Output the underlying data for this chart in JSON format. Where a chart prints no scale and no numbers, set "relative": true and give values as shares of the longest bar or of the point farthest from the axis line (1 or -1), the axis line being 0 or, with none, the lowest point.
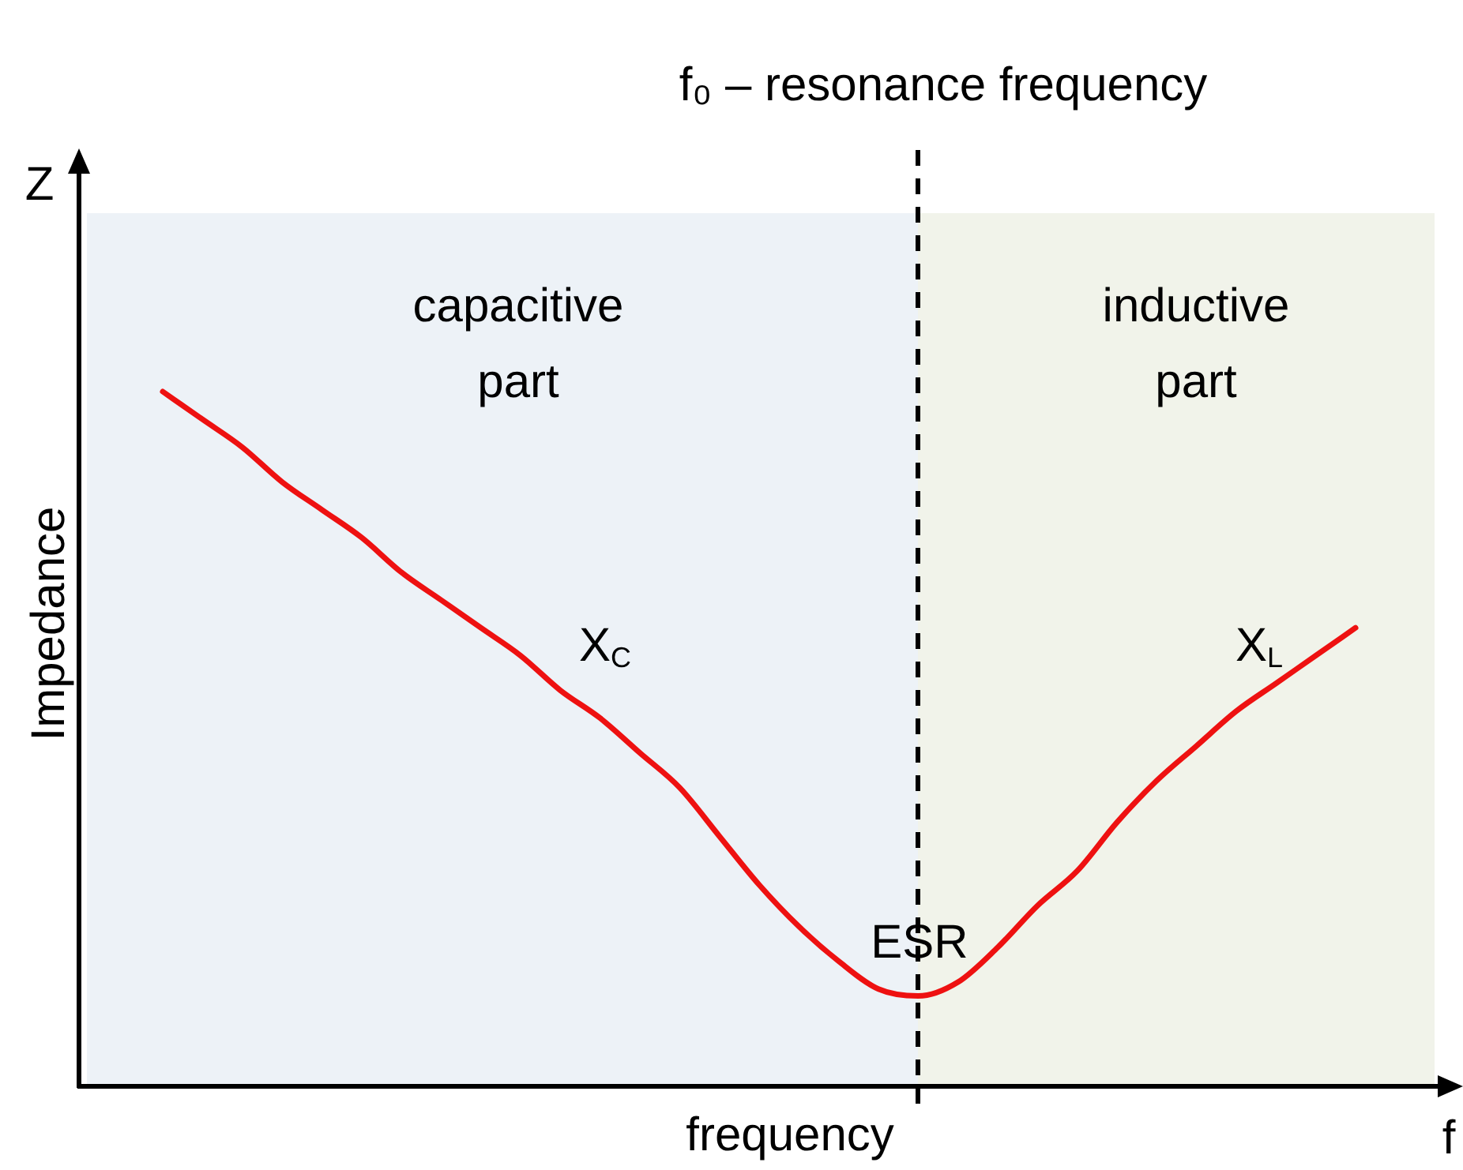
{
  "chart_data": {
    "type": "line",
    "relative": true,
    "tick_labels": false,
    "grid": false,
    "legend": false,
    "marker": "none",
    "line_style": "solid",
    "xlabel": "frequency",
    "ylabel": "Impedance",
    "categories": [
      null,
      null,
      null,
      null,
      null,
      null,
      null,
      null,
      null,
      null,
      null,
      null,
      null,
      null,
      null,
      null,
      null,
      null,
      null,
      null,
      null,
      null,
      null,
      null,
      null,
      null,
      null,
      null,
      null,
      null,
      null
    ],
    "series": [
      {
        "color": "#ee1111",
        "values": [
          1.0,
          0.96,
          0.92,
          0.87,
          0.83,
          0.79,
          0.74,
          0.7,
          0.66,
          0.62,
          0.57,
          0.53,
          0.48,
          0.43,
          0.36,
          0.29,
          0.23,
          0.18,
          0.14,
          0.13,
          0.15,
          0.2,
          0.26,
          0.31,
          0.38,
          0.44,
          0.49,
          0.54,
          0.58,
          0.62,
          0.66
        ]
      }
    ],
    "annotations": [
      "f₀ – resonance frequency",
      "capacitive part",
      "inductive part",
      "X$_{C}$",
      "X$_{L}$",
      "ESR",
      "Z",
      "f"
    ]
  }
}
